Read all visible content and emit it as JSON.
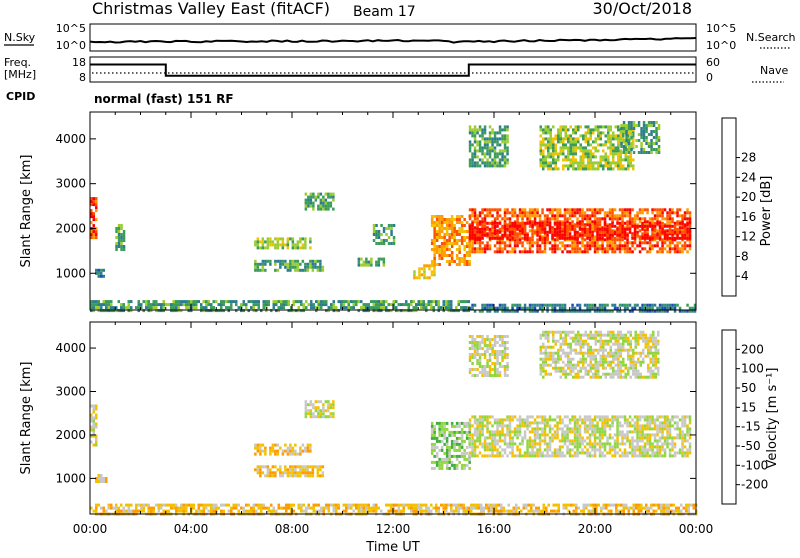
{
  "header": {
    "title": "Christmas Valley East (fitACF)",
    "beam": "Beam 17",
    "date": "30/Oct/2018"
  },
  "control_panels": {
    "nsky_label": "N.Sky",
    "nsearch_label": "N.Search",
    "freq_label_line1": "Freq.",
    "freq_label_line2": "[MHz]",
    "nave_label": "Nave",
    "cpid_label": "CPID",
    "noise_left_ticks": [
      "10^5",
      "10^0"
    ],
    "noise_right_ticks": [
      "10^5",
      "10^0"
    ],
    "freq_left_ticks": [
      "18",
      "8"
    ],
    "freq_right_ticks": [
      "60",
      "0"
    ],
    "cpid_text": "normal (fast) 151 RF",
    "freq_steps": {
      "hours": [
        0,
        3,
        3,
        15,
        15,
        24
      ],
      "levels": [
        0.7,
        0.7,
        0.25,
        0.25,
        0.7,
        0.7
      ]
    }
  },
  "chart_data": [
    {
      "type": "heatmap",
      "name": "power",
      "ylabel": "Slant Range [km]",
      "xlim": [
        0,
        24
      ],
      "ylim": [
        180,
        4600
      ],
      "y_ticks": [
        1000,
        2000,
        3000,
        4000
      ],
      "colorbar": {
        "label": "Power [dB]",
        "ticks": [
          "4",
          "8",
          "12",
          "16",
          "20",
          "24",
          "28"
        ],
        "colors": [
          "#0a1fff",
          "#1b4fb5",
          "#2e7d8f",
          "#3a9b5a",
          "#9acd32",
          "#f2c200",
          "#ff9a00",
          "#ff5200",
          "#ff0000"
        ]
      },
      "regions": [
        {
          "x0": 0.0,
          "x1": 0.2,
          "y0": 1800,
          "y1": 2700,
          "level": 7
        },
        {
          "x0": 1.0,
          "x1": 1.3,
          "y0": 1500,
          "y1": 2100,
          "level": 3
        },
        {
          "x0": 0.2,
          "x1": 0.6,
          "y0": 900,
          "y1": 1100,
          "level": 2
        },
        {
          "x0": 6.5,
          "x1": 8.7,
          "y0": 1550,
          "y1": 1800,
          "level": 4
        },
        {
          "x0": 6.5,
          "x1": 9.2,
          "y0": 1050,
          "y1": 1300,
          "level": 3
        },
        {
          "x0": 8.5,
          "x1": 9.6,
          "y0": 2400,
          "y1": 2800,
          "level": 3
        },
        {
          "x0": 10.6,
          "x1": 11.6,
          "y0": 1150,
          "y1": 1350,
          "level": 3
        },
        {
          "x0": 11.2,
          "x1": 12.0,
          "y0": 1650,
          "y1": 2100,
          "level": 3
        },
        {
          "x0": 12.8,
          "x1": 13.6,
          "y0": 900,
          "y1": 1200,
          "level": 5
        },
        {
          "x0": 13.5,
          "x1": 15.0,
          "y0": 1200,
          "y1": 2300,
          "level": 6
        },
        {
          "x0": 15.0,
          "x1": 23.8,
          "y0": 1500,
          "y1": 2450,
          "level": 7
        },
        {
          "x0": 15.0,
          "x1": 23.8,
          "y0": 1750,
          "y1": 2150,
          "level": 8
        },
        {
          "x0": 15.0,
          "x1": 16.5,
          "y0": 3400,
          "y1": 4300,
          "level": 3
        },
        {
          "x0": 17.8,
          "x1": 21.5,
          "y0": 3300,
          "y1": 4300,
          "level": 4
        },
        {
          "x0": 21.0,
          "x1": 22.5,
          "y0": 3700,
          "y1": 4400,
          "level": 3
        },
        {
          "x0": 0.0,
          "x1": 15.0,
          "y0": 180,
          "y1": 400,
          "level": 3
        },
        {
          "x0": 15.0,
          "x1": 24.0,
          "y0": 180,
          "y1": 320,
          "level": 2
        }
      ]
    },
    {
      "type": "heatmap",
      "name": "velocity",
      "ylabel": "Slant Range [km]",
      "xlabel": "Time UT",
      "x_ticks": [
        "00:00",
        "04:00",
        "08:00",
        "12:00",
        "16:00",
        "20:00",
        "00:00"
      ],
      "xlim": [
        0,
        24
      ],
      "ylim": [
        180,
        4600
      ],
      "y_ticks": [
        1000,
        2000,
        3000,
        4000
      ],
      "colorbar": {
        "label": "Velocity [m s⁻¹]",
        "ticks": [
          "200",
          "100",
          "50",
          "15",
          "-15",
          "-50",
          "-100",
          "-200"
        ],
        "colors": [
          "#1f3fd0",
          "#2e7d8f",
          "#3fae3f",
          "#8fd63f",
          "#c8c8c8",
          "#f2c200",
          "#ff9a00",
          "#ff5a00",
          "#ff0000"
        ]
      },
      "regions": [
        {
          "x0": 0.0,
          "x1": 0.2,
          "y0": 1800,
          "y1": 2700,
          "level": 4
        },
        {
          "x0": 6.5,
          "x1": 8.7,
          "y0": 1550,
          "y1": 1800,
          "level": 5
        },
        {
          "x0": 6.5,
          "x1": 9.2,
          "y0": 1050,
          "y1": 1300,
          "level": 5
        },
        {
          "x0": 0.2,
          "x1": 0.6,
          "y0": 900,
          "y1": 1100,
          "level": 5
        },
        {
          "x0": 8.5,
          "x1": 9.6,
          "y0": 2400,
          "y1": 2800,
          "level": 4
        },
        {
          "x0": 13.5,
          "x1": 15.0,
          "y0": 1200,
          "y1": 2300,
          "level": 3
        },
        {
          "x0": 15.0,
          "x1": 23.8,
          "y0": 1500,
          "y1": 2450,
          "level": 4
        },
        {
          "x0": 15.0,
          "x1": 16.5,
          "y0": 3400,
          "y1": 4300,
          "level": 4
        },
        {
          "x0": 17.8,
          "x1": 22.5,
          "y0": 3300,
          "y1": 4400,
          "level": 4
        },
        {
          "x0": 0.0,
          "x1": 24.0,
          "y0": 180,
          "y1": 420,
          "level": 5
        }
      ]
    }
  ]
}
